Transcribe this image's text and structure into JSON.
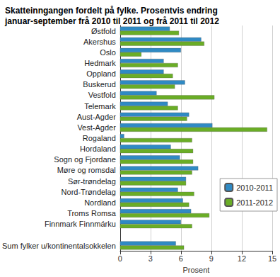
{
  "chart_data": {
    "type": "bar",
    "orientation": "horizontal",
    "title": "Skatteinngangen fordelt på fylke. Prosentvis endring\njanuar-september frå 2010 til 2011 og frå 2011 til 2012",
    "x_label": "Prosent",
    "categories": [
      "Østfold",
      "Akershus",
      "Oslo",
      "Hedmark",
      "Oppland",
      "Buskerud",
      "Vestfold",
      "Telemark",
      "Aust-Agder",
      "Vest-Agder",
      "Rogaland",
      "Hordaland",
      "Sogn og Fjordane",
      "Møre og romsdal",
      "Sør-trøndelag",
      "Nord-Trøndelag",
      "Nordland",
      "Troms Romsa",
      "Finnmark Finnmárku",
      null,
      "Sum fylker u/kontinentalsokkelen"
    ],
    "series": [
      {
        "name": "2010-2011",
        "color": "#2f8ac4",
        "values": [
          4.9,
          8.0,
          6.0,
          4.3,
          4.3,
          6.4,
          3.6,
          4.7,
          6.8,
          9.1,
          0.4,
          5.0,
          5.9,
          7.7,
          6.5,
          5.7,
          6.2,
          7.0,
          6.0,
          null,
          5.5
        ]
      },
      {
        "name": "2011-2012",
        "color": "#6aad26",
        "values": [
          5.8,
          8.3,
          2.1,
          5.7,
          5.2,
          5.4,
          9.3,
          5.7,
          6.6,
          14.5,
          7.1,
          7.2,
          7.2,
          7.1,
          6.5,
          7.3,
          6.8,
          8.8,
          7.1,
          null,
          6.3
        ]
      }
    ],
    "xlim": [
      0,
      15
    ],
    "xticks": [
      0,
      3,
      6,
      9,
      12,
      15
    ],
    "grid": true,
    "legend": "right"
  }
}
